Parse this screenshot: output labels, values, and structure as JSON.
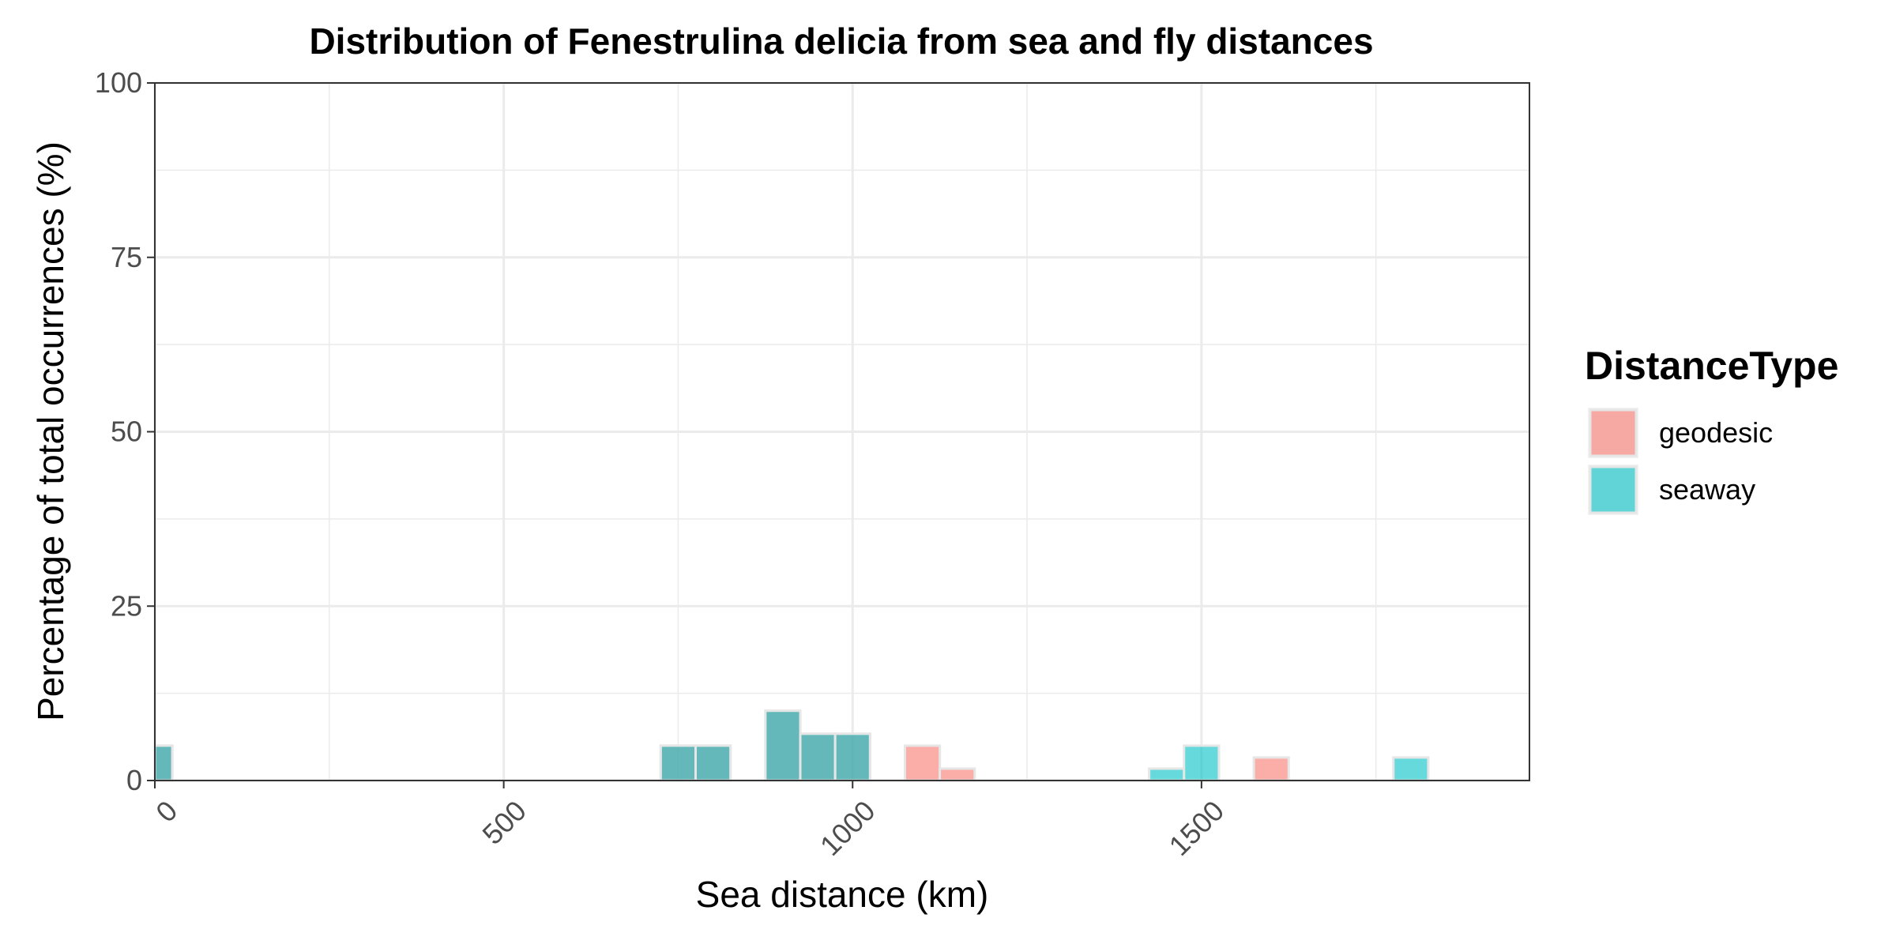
{
  "chart_data": {
    "type": "bar",
    "title": "Distribution of Fenestrulina delicia from sea and fly distances",
    "xlabel": "Sea distance (km)",
    "ylabel": "Percentage of total occurrences (%)",
    "xlim": [
      0,
      1970
    ],
    "ylim": [
      0,
      100
    ],
    "x_ticks": [
      0,
      500,
      1000,
      1500
    ],
    "x_minor_ticks": [
      250,
      750,
      1250,
      1750
    ],
    "y_ticks": [
      0,
      25,
      50,
      75,
      100
    ],
    "y_minor_ticks": [
      12.5,
      37.5,
      62.5,
      87.5
    ],
    "bin_width": 50,
    "grid": true,
    "legend": {
      "title": "DistanceType",
      "position": "right",
      "entries": [
        {
          "name": "geodesic",
          "color": "#F8766D"
        },
        {
          "name": "seaway",
          "color": "#00BFC4"
        }
      ]
    },
    "series": [
      {
        "name": "geodesic",
        "color": "#F8766D",
        "bins": [
          {
            "x": 0,
            "y": 5
          },
          {
            "x": 750,
            "y": 5
          },
          {
            "x": 800,
            "y": 5
          },
          {
            "x": 900,
            "y": 10
          },
          {
            "x": 950,
            "y": 6.7
          },
          {
            "x": 1000,
            "y": 6.7
          },
          {
            "x": 1100,
            "y": 5
          },
          {
            "x": 1150,
            "y": 1.7
          },
          {
            "x": 1600,
            "y": 3.3
          }
        ]
      },
      {
        "name": "seaway",
        "color": "#00BFC4",
        "bins": [
          {
            "x": 0,
            "y": 5
          },
          {
            "x": 750,
            "y": 5
          },
          {
            "x": 800,
            "y": 5
          },
          {
            "x": 900,
            "y": 10
          },
          {
            "x": 950,
            "y": 6.7
          },
          {
            "x": 1000,
            "y": 6.7
          },
          {
            "x": 1450,
            "y": 1.7
          },
          {
            "x": 1500,
            "y": 5
          },
          {
            "x": 1800,
            "y": 3.3
          }
        ]
      }
    ]
  }
}
